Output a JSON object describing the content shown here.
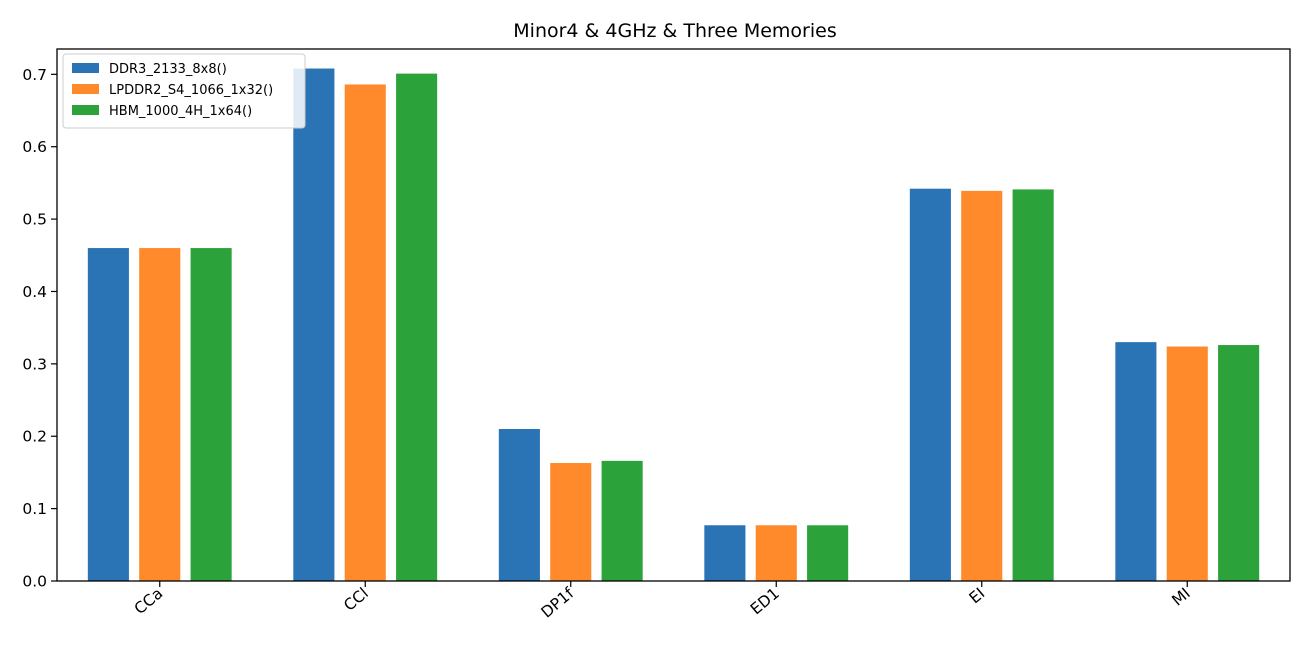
{
  "chart_data": {
    "type": "bar",
    "title": "Minor4 & 4GHz & Three Memories",
    "xlabel": "",
    "ylabel": "",
    "categories": [
      "CCa",
      "CCl",
      "DP1f",
      "ED1",
      "EI",
      "MI"
    ],
    "series": [
      {
        "name": "DDR3_2133_8x8()",
        "color": "#2a73b4",
        "values": [
          0.46,
          0.708,
          0.21,
          0.077,
          0.542,
          0.33
        ]
      },
      {
        "name": "LPDDR2_S4_1066_1x32()",
        "color": "#ff8a2b",
        "values": [
          0.46,
          0.686,
          0.163,
          0.077,
          0.539,
          0.324
        ]
      },
      {
        "name": "HBM_1000_4H_1x64()",
        "color": "#2ca33a",
        "values": [
          0.46,
          0.701,
          0.166,
          0.077,
          0.541,
          0.326
        ]
      }
    ],
    "ylim": [
      0,
      0.735
    ],
    "yticks": [
      0.0,
      0.1,
      0.2,
      0.3,
      0.4,
      0.5,
      0.6,
      0.7
    ],
    "ytick_labels": [
      "0.0",
      "0.1",
      "0.2",
      "0.3",
      "0.4",
      "0.5",
      "0.6",
      "0.7"
    ],
    "grid": false,
    "legend_position": "top-left",
    "xtick_rotation": -40
  }
}
